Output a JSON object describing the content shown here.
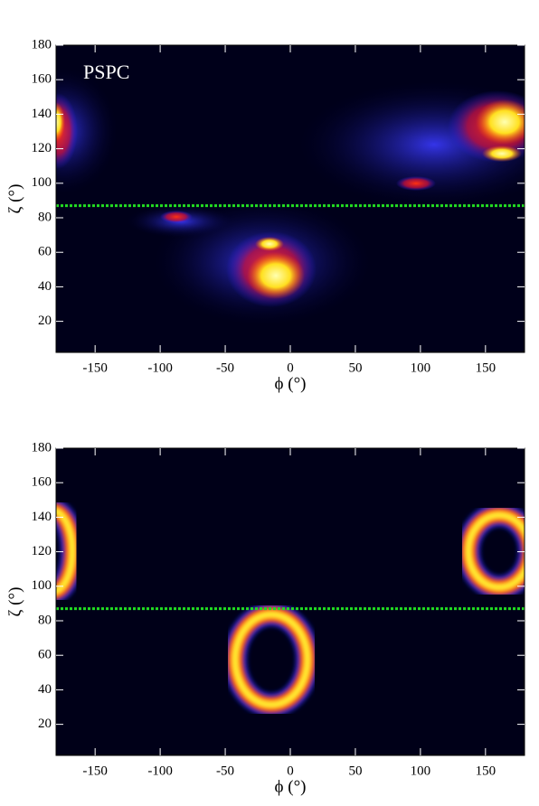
{
  "chart_data": [
    {
      "type": "heatmap",
      "annotation": "PSPC",
      "xlabel": "ϕ (°)",
      "ylabel": "ζ (°)",
      "xlim": [
        -180,
        180
      ],
      "ylim": [
        2,
        180
      ],
      "xticks": [
        -150,
        -100,
        -50,
        0,
        50,
        100,
        150
      ],
      "yticks": [
        20,
        40,
        60,
        80,
        100,
        120,
        140,
        160,
        180
      ],
      "reference_line": 87,
      "reference_color": "#22dd22"
    },
    {
      "type": "heatmap",
      "xlabel": "ϕ (°)",
      "ylabel": "ζ (°)",
      "xlim": [
        -180,
        180
      ],
      "ylim": [
        2,
        180
      ],
      "xticks": [
        -150,
        -100,
        -50,
        0,
        50,
        100,
        150
      ],
      "yticks": [
        20,
        40,
        60,
        80,
        100,
        120,
        140,
        160,
        180
      ],
      "reference_line": 87,
      "reference_color": "#22dd22"
    }
  ]
}
